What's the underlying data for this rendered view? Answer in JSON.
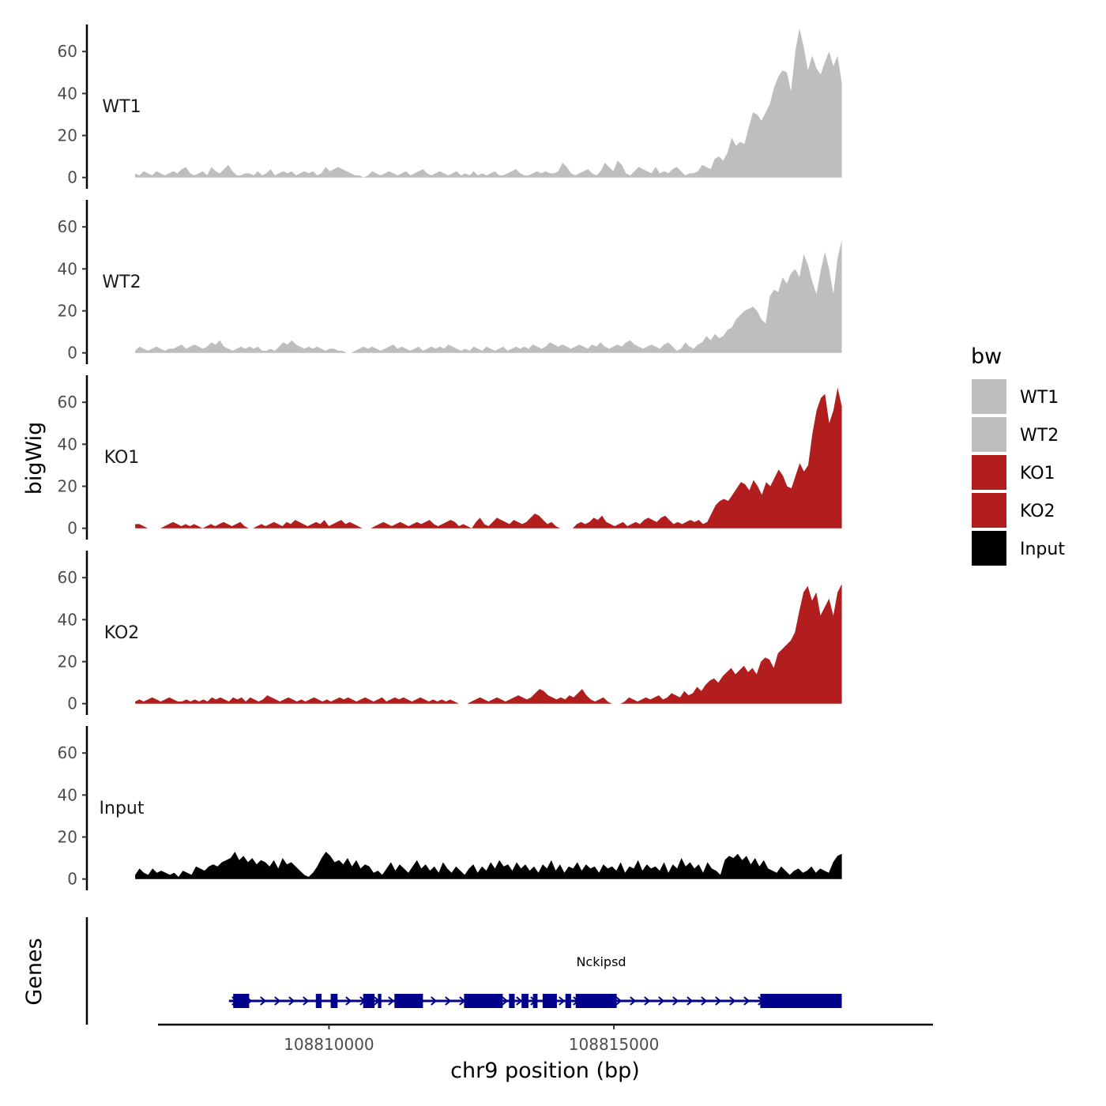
{
  "chart_data": {
    "type": "area",
    "ylabel": "bigWig",
    "xlabel": "chr9 position (bp)",
    "x_ticks": [
      108810000,
      108815000
    ],
    "x_tick_labels": [
      "108810000",
      "108815000"
    ],
    "xlim": [
      108807000,
      108820600
    ],
    "data_range": [
      108806600,
      108819000
    ],
    "y_ticks": [
      0,
      20,
      40,
      60
    ],
    "ylim": [
      -2,
      74
    ],
    "legend": {
      "title": "bw",
      "entries": [
        {
          "name": "WT1",
          "color": "#bebebe"
        },
        {
          "name": "WT2",
          "color": "#bebebe"
        },
        {
          "name": "KO1",
          "color": "#b21e1e"
        },
        {
          "name": "KO2",
          "color": "#b21e1e"
        },
        {
          "name": "Input",
          "color": "#000000"
        }
      ]
    },
    "tracks": [
      {
        "name": "WT1",
        "color": "#bebebe",
        "values": [
          2,
          1,
          3,
          2,
          1,
          3,
          2,
          1,
          2,
          3,
          2,
          4,
          5,
          2,
          1,
          2,
          3,
          1,
          5,
          3,
          2,
          4,
          6,
          3,
          1,
          1,
          2,
          2,
          1,
          3,
          1,
          2,
          4,
          1,
          2,
          3,
          2,
          3,
          1,
          2,
          3,
          2,
          3,
          1,
          2,
          5,
          3,
          4,
          5,
          4,
          3,
          2,
          1,
          1,
          0,
          1,
          3,
          2,
          1,
          2,
          3,
          2,
          1,
          2,
          3,
          1,
          2,
          3,
          4,
          2,
          1,
          2,
          3,
          2,
          1,
          2,
          3,
          1,
          2,
          1,
          3,
          1,
          2,
          1,
          2,
          3,
          1,
          1,
          2,
          3,
          4,
          2,
          1,
          1,
          2,
          3,
          2,
          3,
          2,
          2,
          3,
          7,
          5,
          2,
          1,
          2,
          3,
          4,
          2,
          1,
          3,
          7,
          5,
          3,
          8,
          6,
          2,
          1,
          3,
          5,
          4,
          3,
          2,
          5,
          2,
          3,
          2,
          4,
          5,
          3,
          1,
          2,
          2,
          3,
          6,
          5,
          4,
          9,
          10,
          8,
          12,
          19,
          15,
          17,
          16,
          24,
          31,
          30,
          27,
          31,
          35,
          43,
          48,
          51,
          50,
          41,
          60,
          71,
          62,
          51,
          58,
          52,
          49,
          55,
          60,
          53,
          58,
          45
        ]
      },
      {
        "name": "WT2",
        "color": "#bebebe",
        "values": [
          1,
          3,
          2,
          1,
          2,
          3,
          2,
          1,
          2,
          2,
          3,
          4,
          2,
          3,
          4,
          3,
          2,
          3,
          5,
          4,
          6,
          3,
          2,
          1,
          2,
          3,
          2,
          3,
          2,
          3,
          1,
          1,
          2,
          1,
          3,
          5,
          4,
          6,
          4,
          3,
          2,
          3,
          2,
          3,
          2,
          1,
          2,
          2,
          1,
          1,
          0,
          0,
          1,
          2,
          3,
          2,
          3,
          2,
          1,
          2,
          3,
          4,
          2,
          3,
          2,
          1,
          2,
          3,
          1,
          2,
          3,
          2,
          3,
          2,
          4,
          3,
          2,
          1,
          2,
          1,
          3,
          2,
          1,
          3,
          2,
          1,
          2,
          3,
          1,
          2,
          3,
          2,
          3,
          2,
          4,
          3,
          2,
          3,
          5,
          4,
          3,
          4,
          3,
          2,
          3,
          4,
          3,
          2,
          4,
          3,
          5,
          3,
          2,
          3,
          4,
          3,
          5,
          6,
          4,
          3,
          2,
          3,
          4,
          3,
          2,
          4,
          5,
          3,
          1,
          2,
          5,
          3,
          2,
          4,
          5,
          8,
          6,
          9,
          7,
          8,
          11,
          12,
          16,
          18,
          20,
          21,
          22,
          20,
          16,
          14,
          27,
          30,
          29,
          36,
          33,
          38,
          40,
          36,
          47,
          42,
          34,
          28,
          39,
          48,
          40,
          28,
          45,
          54
        ]
      },
      {
        "name": "KO1",
        "color": "#b21e1e",
        "values": [
          2,
          2,
          1,
          0,
          0,
          0,
          0,
          1,
          2,
          3,
          2,
          1,
          2,
          1,
          2,
          1,
          0,
          1,
          2,
          1,
          2,
          3,
          2,
          1,
          2,
          3,
          1,
          0,
          0,
          1,
          2,
          1,
          2,
          3,
          2,
          1,
          3,
          2,
          4,
          3,
          2,
          1,
          2,
          3,
          2,
          4,
          1,
          2,
          3,
          4,
          2,
          3,
          2,
          1,
          0,
          0,
          0,
          1,
          2,
          3,
          2,
          1,
          2,
          3,
          2,
          1,
          2,
          3,
          2,
          3,
          4,
          2,
          1,
          2,
          3,
          4,
          3,
          1,
          2,
          1,
          0,
          3,
          5,
          2,
          1,
          3,
          5,
          4,
          3,
          2,
          4,
          3,
          2,
          3,
          5,
          7,
          6,
          4,
          2,
          3,
          1,
          0,
          0,
          0,
          0,
          2,
          3,
          2,
          3,
          5,
          4,
          6,
          3,
          2,
          1,
          2,
          3,
          1,
          2,
          3,
          2,
          4,
          5,
          4,
          3,
          5,
          6,
          4,
          2,
          3,
          2,
          3,
          4,
          3,
          4,
          2,
          3,
          7,
          11,
          13,
          14,
          13,
          16,
          19,
          22,
          21,
          18,
          23,
          20,
          16,
          22,
          20,
          24,
          28,
          25,
          20,
          19,
          25,
          31,
          27,
          30,
          45,
          56,
          62,
          64,
          50,
          56,
          67,
          58
        ]
      },
      {
        "name": "KO2",
        "color": "#b21e1e",
        "values": [
          1,
          2,
          1,
          2,
          3,
          2,
          1,
          2,
          3,
          2,
          1,
          1,
          2,
          1,
          2,
          1,
          2,
          1,
          3,
          2,
          3,
          2,
          1,
          3,
          2,
          3,
          1,
          3,
          2,
          1,
          2,
          4,
          3,
          2,
          1,
          2,
          3,
          2,
          1,
          2,
          1,
          2,
          3,
          2,
          1,
          2,
          1,
          2,
          3,
          2,
          3,
          2,
          1,
          2,
          3,
          2,
          1,
          2,
          3,
          1,
          2,
          3,
          2,
          3,
          2,
          1,
          2,
          3,
          2,
          1,
          2,
          1,
          2,
          1,
          2,
          1,
          0,
          0,
          0,
          1,
          2,
          3,
          2,
          1,
          2,
          3,
          2,
          1,
          2,
          3,
          4,
          3,
          2,
          3,
          5,
          7,
          6,
          4,
          3,
          2,
          3,
          2,
          4,
          3,
          5,
          7,
          4,
          2,
          1,
          2,
          3,
          1,
          0,
          0,
          0,
          1,
          3,
          2,
          1,
          2,
          3,
          2,
          3,
          4,
          2,
          3,
          5,
          4,
          3,
          6,
          4,
          5,
          8,
          6,
          9,
          11,
          12,
          10,
          13,
          15,
          17,
          14,
          16,
          18,
          15,
          17,
          14,
          20,
          22,
          21,
          17,
          24,
          26,
          28,
          30,
          34,
          44,
          53,
          56,
          49,
          53,
          42,
          46,
          50,
          42,
          53,
          57
        ]
      },
      {
        "name": "Input",
        "color": "#000000",
        "values": [
          2,
          5,
          3,
          2,
          5,
          3,
          4,
          3,
          2,
          3,
          1,
          4,
          3,
          2,
          6,
          5,
          4,
          6,
          7,
          6,
          8,
          9,
          10,
          13,
          9,
          11,
          8,
          10,
          7,
          9,
          8,
          6,
          9,
          5,
          10,
          7,
          8,
          6,
          4,
          2,
          1,
          3,
          6,
          10,
          13,
          11,
          8,
          9,
          7,
          10,
          6,
          9,
          5,
          7,
          6,
          3,
          4,
          2,
          5,
          8,
          4,
          7,
          5,
          3,
          6,
          9,
          5,
          7,
          4,
          6,
          3,
          8,
          5,
          3,
          6,
          4,
          2,
          5,
          7,
          3,
          6,
          4,
          8,
          5,
          9,
          6,
          7,
          4,
          8,
          5,
          7,
          4,
          6,
          3,
          7,
          5,
          9,
          4,
          7,
          3,
          6,
          5,
          8,
          4,
          7,
          5,
          6,
          3,
          7,
          5,
          6,
          4,
          8,
          3,
          6,
          5,
          9,
          4,
          7,
          5,
          6,
          4,
          8,
          3,
          7,
          5,
          10,
          6,
          8,
          5,
          7,
          3,
          8,
          5,
          4,
          2,
          9,
          11,
          10,
          12,
          9,
          11,
          7,
          10,
          6,
          9,
          5,
          4,
          3,
          6,
          4,
          2,
          4,
          5,
          3,
          4,
          6,
          3,
          5,
          4,
          3,
          8,
          11,
          12
        ]
      }
    ],
    "genes_track": {
      "label": "Genes",
      "gene_name": "Nckipsd",
      "strand": "+",
      "color": "#00008b",
      "span": [
        108808300,
        108819000
      ],
      "exons": [
        [
          108808320,
          108808600
        ],
        [
          108809770,
          108809870
        ],
        [
          108810030,
          108810150
        ],
        [
          108810600,
          108810800
        ],
        [
          108810860,
          108810920
        ],
        [
          108811150,
          108811650
        ],
        [
          108812370,
          108813050
        ],
        [
          108813160,
          108813260
        ],
        [
          108813380,
          108813500
        ],
        [
          108813580,
          108813660
        ],
        [
          108813750,
          108814000
        ],
        [
          108814150,
          108814250
        ],
        [
          108814330,
          108815050
        ],
        [
          108817570,
          108819000
        ]
      ]
    }
  }
}
